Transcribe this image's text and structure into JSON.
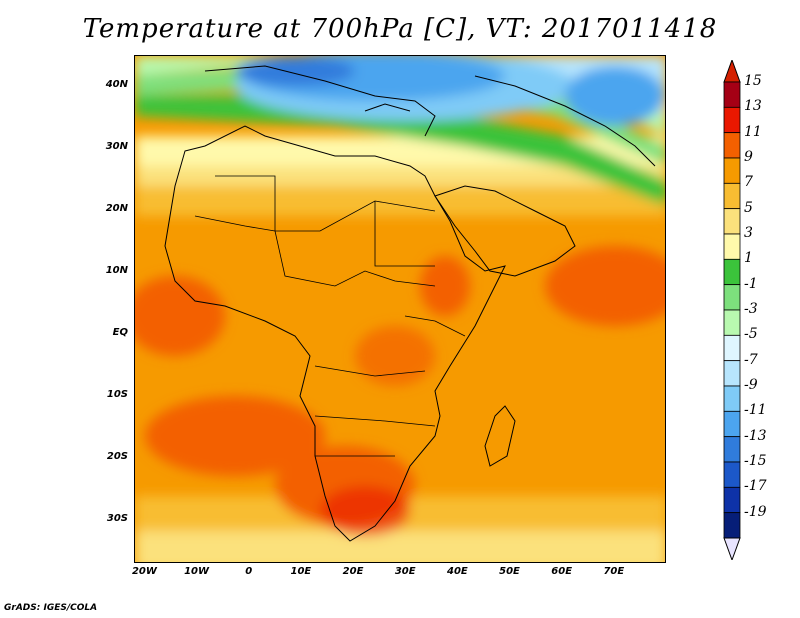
{
  "title": "Temperature at 700hPa [C], VT: 2017011418",
  "credit": "GrADS: IGES/COLA",
  "map": {
    "lat_labels": [
      "40N",
      "30N",
      "20N",
      "10N",
      "EQ",
      "10S",
      "20S",
      "30S"
    ],
    "lat_values": [
      40,
      30,
      20,
      10,
      0,
      -10,
      -20,
      -30
    ],
    "lon_labels": [
      "20W",
      "10W",
      "0",
      "10E",
      "20E",
      "30E",
      "40E",
      "50E",
      "60E",
      "70E"
    ],
    "lon_values": [
      -20,
      -10,
      0,
      10,
      20,
      30,
      40,
      50,
      60,
      70
    ],
    "lon_range": [
      -22,
      80
    ],
    "lat_range": [
      -37,
      45
    ]
  },
  "colorbar": {
    "labels": [
      "15",
      "13",
      "11",
      "9",
      "7",
      "5",
      "3",
      "1",
      "-1",
      "-3",
      "-5",
      "-7",
      "-9",
      "-11",
      "-13",
      "-15",
      "-17",
      "-19"
    ],
    "colors": [
      "#a50015",
      "#ea1800",
      "#f36000",
      "#f69a00",
      "#f8bd32",
      "#fbe17c",
      "#fff9ab",
      "#3bc33b",
      "#7de07d",
      "#b9f9b0",
      "#dff6ff",
      "#b7e5fd",
      "#7fcbf7",
      "#4ca5ef",
      "#307cdc",
      "#1c58c9",
      "#0e32a8",
      "#061e78"
    ],
    "top_color": "#d42000",
    "bottom_color": "#e8e4ff"
  }
}
